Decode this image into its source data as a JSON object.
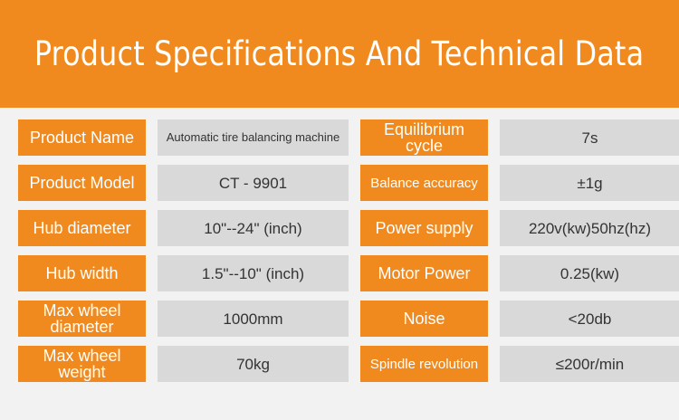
{
  "header": {
    "title": "Product Specifications And Technical Data"
  },
  "rows": [
    {
      "l1": "Product Name",
      "v1": "Automatic tire balancing machine",
      "l2": "Equilibrium cycle",
      "v2": "7s"
    },
    {
      "l1": "Product Model",
      "v1": "CT - 9901",
      "l2": "Balance accuracy",
      "v2": "±1g"
    },
    {
      "l1": "Hub diameter",
      "v1": "10\"--24\" (inch)",
      "l2": "Power supply",
      "v2": "220v(kw)50hz(hz)"
    },
    {
      "l1": "Hub width",
      "v1": "1.5\"--10\" (inch)",
      "l2": "Motor Power",
      "v2": "0.25(kw)"
    },
    {
      "l1": "Max wheel diameter",
      "v1": "1000mm",
      "l2": "Noise",
      "v2": "<20db"
    },
    {
      "l1": "Max wheel weight",
      "v1": "70kg",
      "l2": "Spindle revolution",
      "v2": "≤200r/min"
    }
  ],
  "colors": {
    "accent": "#f08a1e",
    "cell": "#d9d9d9",
    "background": "#f2f2f2"
  }
}
